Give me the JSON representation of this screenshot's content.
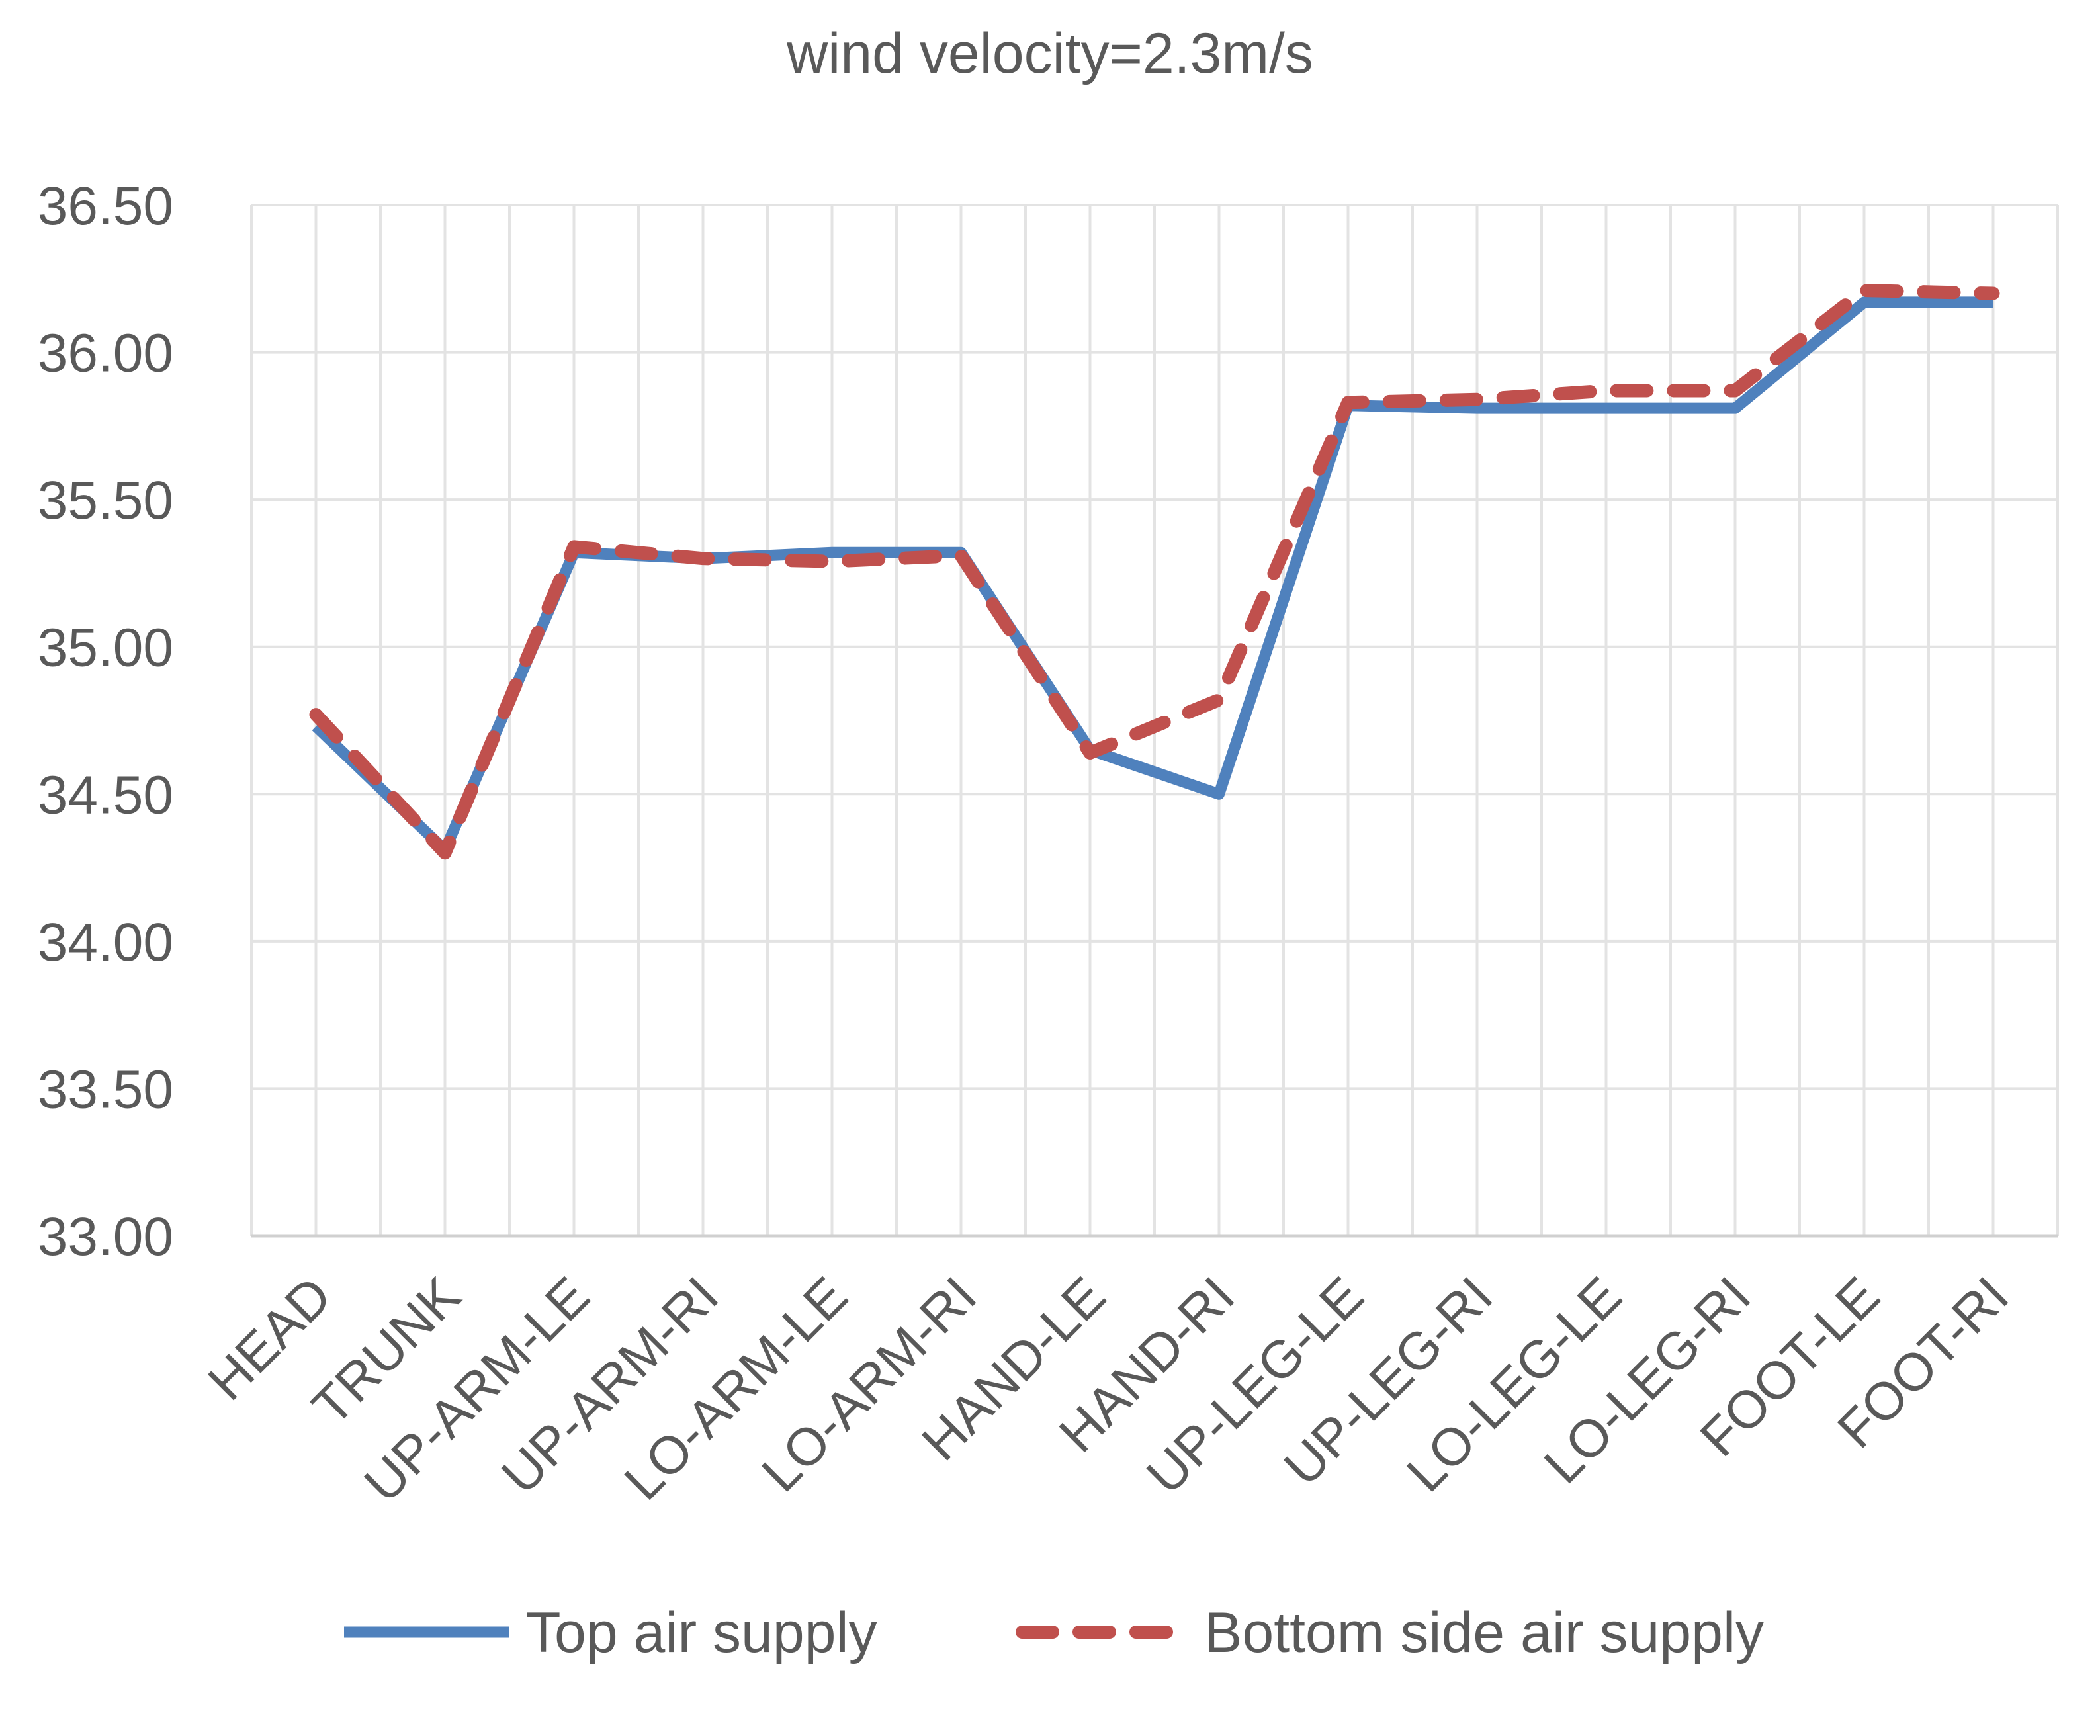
{
  "chart_data": {
    "type": "line",
    "title": "wind velocity=2.3m/s",
    "xlabel": "",
    "ylabel": "",
    "categories": [
      "HEAD",
      "TRUNK",
      "UP-ARM-LE",
      "UP-ARM-RI",
      "LO-ARM-LE",
      "LO-ARM-RI",
      "HAND-LE",
      "HAND-RI",
      "UP-LEG-LE",
      "UP-LEG-RI",
      "LO-LEG-LE",
      "LO-LEG-RI",
      "FOOT-LE",
      "FOOT-RI"
    ],
    "ylim": [
      33.0,
      36.5
    ],
    "yticks": [
      "33.00",
      "33.50",
      "34.00",
      "34.50",
      "35.00",
      "35.50",
      "36.00",
      "36.50"
    ],
    "grid": true,
    "legend_position": "bottom",
    "series": [
      {
        "name": "Top air supply",
        "color": "#4F81BD",
        "dash": "solid",
        "values": [
          34.73,
          34.31,
          35.32,
          35.3,
          35.32,
          35.32,
          34.65,
          34.5,
          35.82,
          35.81,
          35.81,
          35.81,
          36.17,
          36.17
        ]
      },
      {
        "name": "Bottom side air supply",
        "color": "#C0504D",
        "dash": "dashed",
        "values": [
          34.77,
          34.3,
          35.34,
          35.3,
          35.29,
          35.31,
          34.64,
          34.82,
          35.83,
          35.84,
          35.87,
          35.87,
          36.21,
          36.2
        ]
      }
    ]
  }
}
